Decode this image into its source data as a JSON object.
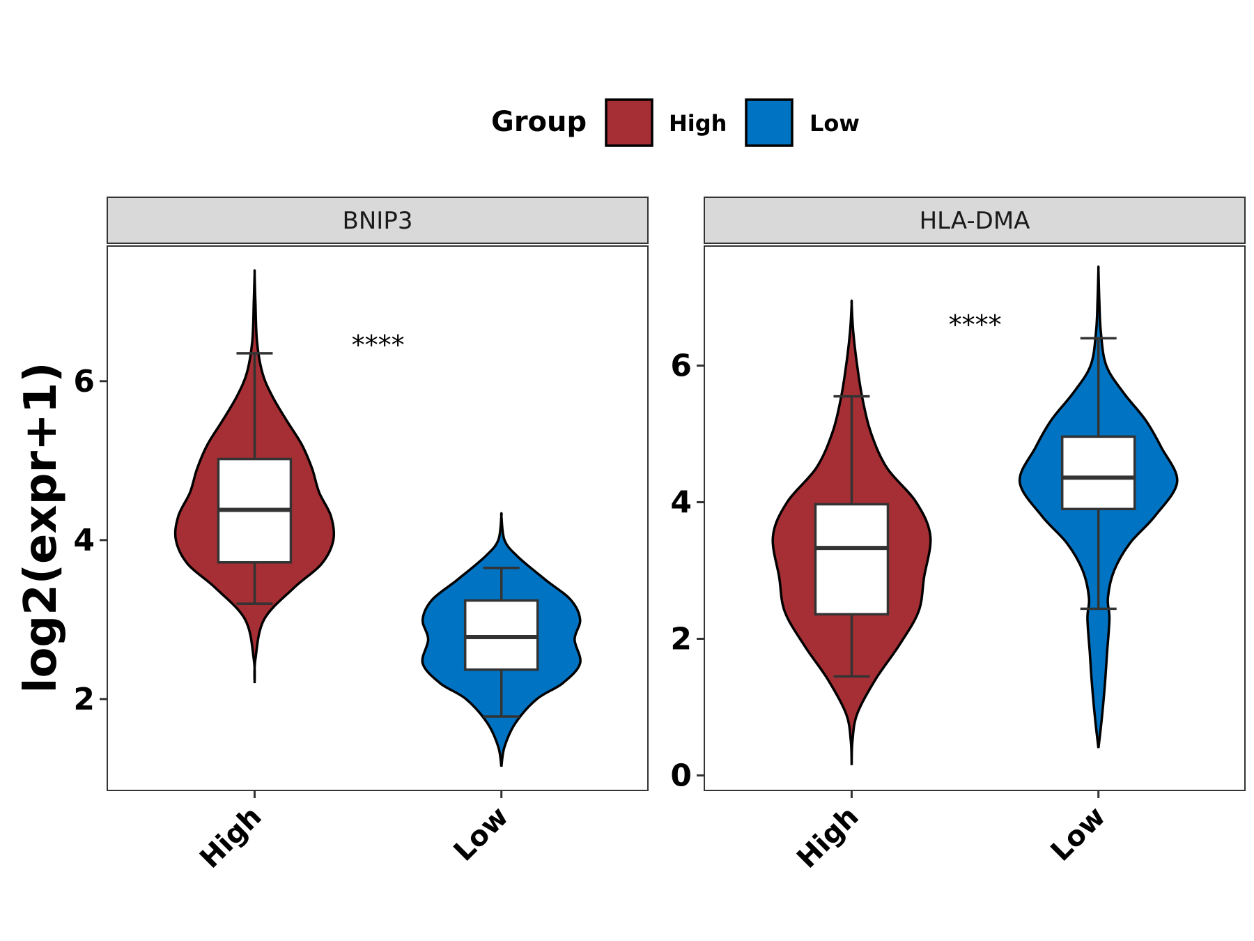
{
  "chart_data": {
    "type": "violin",
    "ylabel": "log2(expr+1)",
    "legend": {
      "title": "Group",
      "position": "top",
      "entries": [
        {
          "name": "High",
          "color": "#A52F34"
        },
        {
          "name": "Low",
          "color": "#0073C2"
        }
      ]
    },
    "categories": [
      "High",
      "Low"
    ],
    "panels": [
      {
        "title": "BNIP3",
        "ylim": [
          0.85,
          7.7
        ],
        "yticks": [
          2,
          4,
          6
        ],
        "significance": "****",
        "significance_y": 6.5,
        "groups": [
          {
            "name": "High",
            "color": "#A52F34",
            "box": {
              "whisker_low": 3.2,
              "q1": 3.72,
              "median": 4.38,
              "q3": 5.02,
              "whisker_high": 6.35
            },
            "density": [
              [
                2.2,
                0.0
              ],
              [
                2.5,
                0.01
              ],
              [
                3.0,
                0.12
              ],
              [
                3.4,
                0.5
              ],
              [
                3.7,
                0.85
              ],
              [
                4.0,
                1.0
              ],
              [
                4.3,
                0.97
              ],
              [
                4.6,
                0.82
              ],
              [
                4.9,
                0.73
              ],
              [
                5.2,
                0.6
              ],
              [
                5.5,
                0.41
              ],
              [
                5.8,
                0.23
              ],
              [
                6.1,
                0.1
              ],
              [
                6.5,
                0.03
              ],
              [
                7.0,
                0.01
              ],
              [
                7.35,
                0.0
              ]
            ]
          },
          {
            "name": "Low",
            "color": "#0073C2",
            "box": {
              "whisker_low": 1.78,
              "q1": 2.37,
              "median": 2.78,
              "q3": 3.24,
              "whisker_high": 3.65
            },
            "density": [
              [
                1.15,
                0.0
              ],
              [
                1.4,
                0.04
              ],
              [
                1.7,
                0.18
              ],
              [
                2.0,
                0.45
              ],
              [
                2.2,
                0.78
              ],
              [
                2.45,
                1.0
              ],
              [
                2.75,
                0.93
              ],
              [
                3.0,
                1.0
              ],
              [
                3.25,
                0.88
              ],
              [
                3.5,
                0.56
              ],
              [
                3.8,
                0.2
              ],
              [
                4.0,
                0.04
              ],
              [
                4.3,
                0.0
              ]
            ]
          }
        ]
      },
      {
        "title": "HLA-DMA",
        "ylim": [
          -0.22,
          7.75
        ],
        "yticks": [
          0,
          2,
          4,
          6
        ],
        "significance": "****",
        "significance_y": 6.65,
        "groups": [
          {
            "name": "High",
            "color": "#A52F34",
            "box": {
              "whisker_low": 1.45,
              "q1": 2.36,
              "median": 3.33,
              "q3": 3.97,
              "whisker_high": 5.55
            },
            "density": [
              [
                0.15,
                0.0
              ],
              [
                0.5,
                0.01
              ],
              [
                0.9,
                0.07
              ],
              [
                1.4,
                0.3
              ],
              [
                1.9,
                0.6
              ],
              [
                2.4,
                0.85
              ],
              [
                2.9,
                0.92
              ],
              [
                3.5,
                1.0
              ],
              [
                4.0,
                0.82
              ],
              [
                4.5,
                0.45
              ],
              [
                5.0,
                0.25
              ],
              [
                5.5,
                0.14
              ],
              [
                6.0,
                0.07
              ],
              [
                6.5,
                0.02
              ],
              [
                6.9,
                0.0
              ]
            ]
          },
          {
            "name": "Low",
            "color": "#0073C2",
            "box": {
              "whisker_low": 2.44,
              "q1": 3.9,
              "median": 4.36,
              "q3": 4.96,
              "whisker_high": 6.4
            },
            "density": [
              [
                0.4,
                0.0
              ],
              [
                0.8,
                0.04
              ],
              [
                1.3,
                0.08
              ],
              [
                1.8,
                0.11
              ],
              [
                2.3,
                0.14
              ],
              [
                2.6,
                0.12
              ],
              [
                3.0,
                0.2
              ],
              [
                3.4,
                0.4
              ],
              [
                3.8,
                0.72
              ],
              [
                4.3,
                1.0
              ],
              [
                4.8,
                0.8
              ],
              [
                5.2,
                0.6
              ],
              [
                5.6,
                0.32
              ],
              [
                6.0,
                0.1
              ],
              [
                6.5,
                0.03
              ],
              [
                7.0,
                0.01
              ],
              [
                7.4,
                0.0
              ]
            ]
          }
        ]
      }
    ]
  }
}
